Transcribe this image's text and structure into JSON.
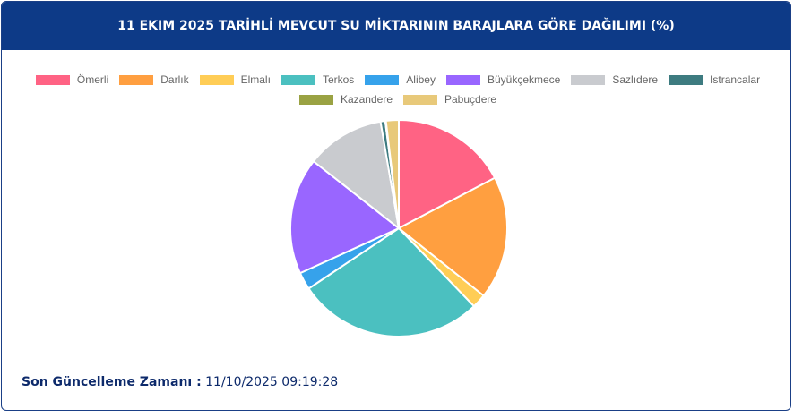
{
  "chart_data": {
    "type": "pie",
    "title": "11 EKIM 2025 TARİHLİ MEVCUT SU MİKTARININ BARAJLARA GÖRE DAĞILIMI (%)",
    "categories": [
      "Ömerli",
      "Darlık",
      "Elmalı",
      "Terkos",
      "Alibey",
      "Büyükçekmece",
      "Sazlıdere",
      "Istrancalar",
      "Kazandere",
      "Pabuçdere"
    ],
    "values": [
      17.3,
      18.4,
      2.1,
      27.8,
      2.6,
      17.4,
      11.7,
      0.7,
      0.1,
      1.9
    ],
    "colors": [
      "#ff6384",
      "#ff9f40",
      "#ffcd56",
      "#4bc0c0",
      "#36a2eb",
      "#9966ff",
      "#c9cbcf",
      "#3d7b80",
      "#9aa243",
      "#e8c97a"
    ],
    "legend_position": "top"
  },
  "footer": {
    "label": "Son Güncelleme Zamanı :",
    "value": "11/10/2025 09:19:28"
  }
}
